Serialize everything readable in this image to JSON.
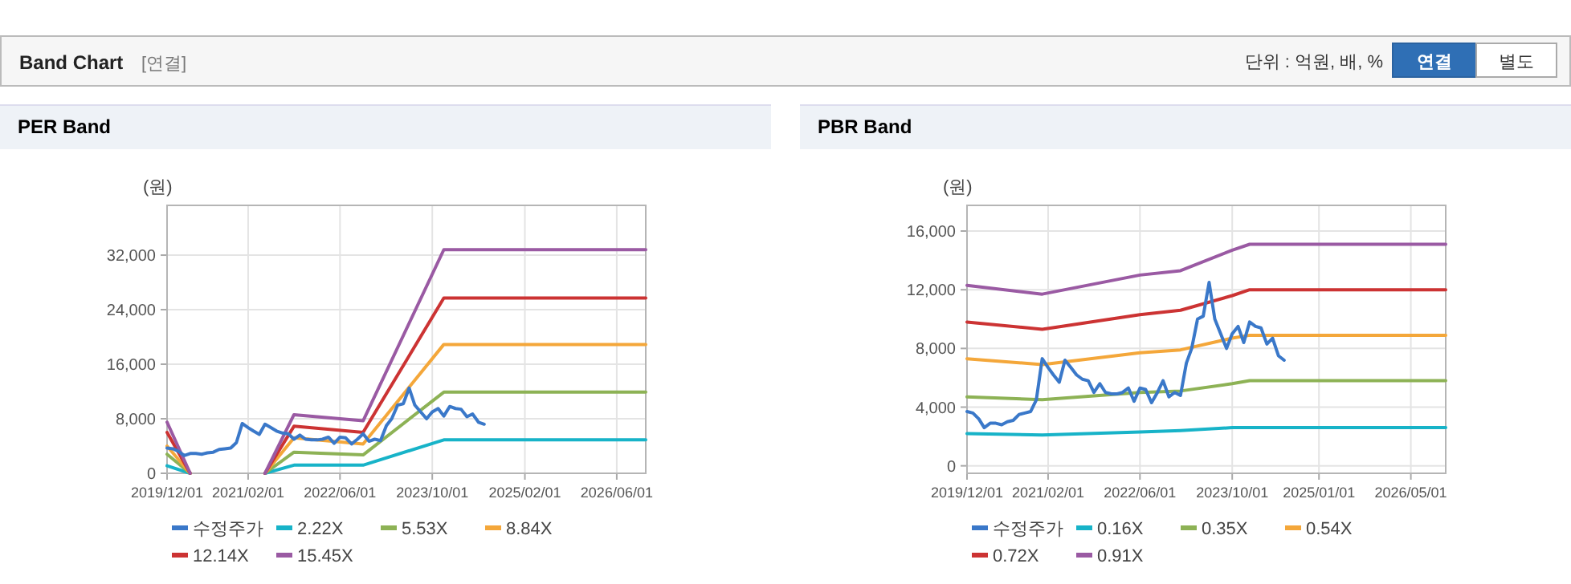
{
  "chart_data": [
    {
      "type": "other",
      "title": "Band Chart",
      "annotations": [
        "[연결]",
        "단위 : 억원, 배, %",
        "연결",
        "별도"
      ]
    },
    {
      "type": "line",
      "title": "PER Band",
      "ylabel": "(원)",
      "xlim": [
        "2019-12-01",
        "2026-11-01"
      ],
      "ylim": [
        0,
        39300
      ],
      "xticks": [
        {
          "value": "2019-12-01",
          "label": "2019/12/01"
        },
        {
          "value": "2021-02-01",
          "label": "2021/02/01"
        },
        {
          "value": "2022-06-01",
          "label": "2022/06/01"
        },
        {
          "value": "2023-10-01",
          "label": "2023/10/01"
        },
        {
          "value": "2025-02-01",
          "label": "2025/02/01"
        },
        {
          "value": "2026-06-01",
          "label": "2026/06/01"
        }
      ],
      "yticks": [
        0,
        {
          "value": 8000,
          "label": "8,000"
        },
        {
          "value": 16000,
          "label": "16,000"
        },
        {
          "value": 24000,
          "label": "24,000"
        },
        {
          "value": 32000,
          "label": "32,000"
        }
      ],
      "grid": true,
      "legend": "bottom",
      "marker": "none",
      "line_style": "solid",
      "series": [
        {
          "name": "수정주가",
          "color": "#3a78c9",
          "x": [
            "2019-12",
            "2020-01",
            "2020-02",
            "2020-03",
            "2020-04",
            "2020-05",
            "2020-06",
            "2020-07",
            "2020-08",
            "2020-09",
            "2020-10",
            "2020-11",
            "2020-12",
            "2021-01",
            "2021-02",
            "2021-03",
            "2021-04",
            "2021-05",
            "2021-06",
            "2021-07",
            "2021-08",
            "2021-09",
            "2021-10",
            "2021-11",
            "2021-12",
            "2022-01",
            "2022-02",
            "2022-03",
            "2022-04",
            "2022-05",
            "2022-06",
            "2022-07",
            "2022-08",
            "2022-09",
            "2022-10",
            "2022-11",
            "2022-12",
            "2023-01",
            "2023-02",
            "2023-03",
            "2023-04",
            "2023-05",
            "2023-06",
            "2023-07",
            "2023-08",
            "2023-09",
            "2023-10",
            "2023-11",
            "2023-12",
            "2024-01",
            "2024-02",
            "2024-03",
            "2024-04",
            "2024-05",
            "2024-06",
            "2024-07"
          ],
          "values": [
            3700,
            3600,
            3200,
            2600,
            2900,
            2900,
            2800,
            3000,
            3100,
            3500,
            3600,
            3700,
            4500,
            7300,
            6700,
            6200,
            5700,
            7200,
            6700,
            6200,
            5900,
            5800,
            5000,
            5600,
            5000,
            4900,
            4900,
            5000,
            5300,
            4400,
            5300,
            5200,
            4300,
            5000,
            5800,
            4700,
            5000,
            4800,
            7000,
            8000,
            10000,
            10200,
            12500,
            10000,
            9000,
            8000,
            9000,
            9500,
            8400,
            9800,
            9500,
            9400,
            8300,
            8700,
            7500,
            7200
          ]
        },
        {
          "name": "2.22X",
          "color": "#17b3c8",
          "x": [
            "2019-12",
            "2020-04",
            "2020-05",
            "2021-05",
            "2021-10",
            "2022-10",
            "2023-12",
            "2026-11"
          ],
          "values": [
            1100,
            0,
            null,
            0,
            1200,
            1200,
            4900,
            4900
          ]
        },
        {
          "name": "5.53X",
          "color": "#8db255",
          "x": [
            "2019-12",
            "2020-04",
            "2020-05",
            "2021-05",
            "2021-10",
            "2022-10",
            "2023-12",
            "2026-11"
          ],
          "values": [
            2800,
            0,
            null,
            0,
            3100,
            2700,
            11900,
            11900
          ]
        },
        {
          "name": "8.84X",
          "color": "#f4a73a",
          "x": [
            "2019-12",
            "2020-04",
            "2020-05",
            "2021-05",
            "2021-10",
            "2022-10",
            "2023-12",
            "2026-11"
          ],
          "values": [
            4000,
            0,
            null,
            0,
            5200,
            4300,
            18900,
            18900
          ]
        },
        {
          "name": "12.14X",
          "color": "#cc3333",
          "x": [
            "2019-12",
            "2020-04",
            "2020-05",
            "2021-05",
            "2021-10",
            "2022-10",
            "2023-12",
            "2026-11"
          ],
          "values": [
            6000,
            0,
            null,
            0,
            6900,
            6000,
            25700,
            25700
          ]
        },
        {
          "name": "15.45X",
          "color": "#9a5aa3",
          "x": [
            "2019-12",
            "2020-04",
            "2020-05",
            "2021-05",
            "2021-10",
            "2022-10",
            "2023-12",
            "2026-11"
          ],
          "values": [
            7500,
            0,
            null,
            0,
            8600,
            7700,
            32800,
            32800
          ]
        }
      ]
    },
    {
      "type": "line",
      "title": "PBR Band",
      "ylabel": "(원)",
      "xlim": [
        "2019-12-01",
        "2026-11-01"
      ],
      "ylim": [
        -510,
        17750
      ],
      "xticks": [
        {
          "value": "2019-12-01",
          "label": "2019/12/01"
        },
        {
          "value": "2021-02-01",
          "label": "2021/02/01"
        },
        {
          "value": "2022-06-01",
          "label": "2022/06/01"
        },
        {
          "value": "2023-10-01",
          "label": "2023/10/01"
        },
        {
          "value": "2025-01-01",
          "label": "2025/01/01"
        },
        {
          "value": "2026-05-01",
          "label": "2026/05/01"
        }
      ],
      "yticks": [
        0,
        {
          "value": 4000,
          "label": "4,000"
        },
        {
          "value": 8000,
          "label": "8,000"
        },
        {
          "value": 12000,
          "label": "12,000"
        },
        {
          "value": 16000,
          "label": "16,000"
        }
      ],
      "grid": true,
      "legend": "bottom",
      "marker": "none",
      "line_style": "solid",
      "series": [
        {
          "name": "수정주가",
          "color": "#3a78c9",
          "x": [
            "2019-12",
            "2020-01",
            "2020-02",
            "2020-03",
            "2020-04",
            "2020-05",
            "2020-06",
            "2020-07",
            "2020-08",
            "2020-09",
            "2020-10",
            "2020-11",
            "2020-12",
            "2021-01",
            "2021-02",
            "2021-03",
            "2021-04",
            "2021-05",
            "2021-06",
            "2021-07",
            "2021-08",
            "2021-09",
            "2021-10",
            "2021-11",
            "2021-12",
            "2022-01",
            "2022-02",
            "2022-03",
            "2022-04",
            "2022-05",
            "2022-06",
            "2022-07",
            "2022-08",
            "2022-09",
            "2022-10",
            "2022-11",
            "2022-12",
            "2023-01",
            "2023-02",
            "2023-03",
            "2023-04",
            "2023-05",
            "2023-06",
            "2023-07",
            "2023-08",
            "2023-09",
            "2023-10",
            "2023-11",
            "2023-12",
            "2024-01",
            "2024-02",
            "2024-03",
            "2024-04",
            "2024-05",
            "2024-06",
            "2024-07"
          ],
          "values": [
            3700,
            3600,
            3200,
            2600,
            2900,
            2900,
            2800,
            3000,
            3100,
            3500,
            3600,
            3700,
            4500,
            7300,
            6700,
            6200,
            5700,
            7200,
            6700,
            6200,
            5900,
            5800,
            5000,
            5600,
            5000,
            4900,
            4900,
            5000,
            5300,
            4400,
            5300,
            5200,
            4300,
            5000,
            5800,
            4700,
            5000,
            4800,
            7000,
            8000,
            10000,
            10200,
            12500,
            10000,
            9000,
            8000,
            9000,
            9500,
            8400,
            9800,
            9500,
            9400,
            8300,
            8700,
            7500,
            7200
          ]
        },
        {
          "name": "0.16X",
          "color": "#17b3c8",
          "x": [
            "2019-12",
            "2021-01",
            "2022-06",
            "2023-01",
            "2023-10",
            "2024-01",
            "2026-11"
          ],
          "values": [
            2200,
            2100,
            2300,
            2400,
            2600,
            2600,
            2600
          ]
        },
        {
          "name": "0.35X",
          "color": "#8db255",
          "x": [
            "2019-12",
            "2021-01",
            "2022-06",
            "2023-01",
            "2023-10",
            "2024-01",
            "2026-11"
          ],
          "values": [
            4700,
            4500,
            5000,
            5100,
            5600,
            5800,
            5800
          ]
        },
        {
          "name": "0.54X",
          "color": "#f4a73a",
          "x": [
            "2019-12",
            "2021-01",
            "2022-06",
            "2023-01",
            "2023-10",
            "2024-01",
            "2026-11"
          ],
          "values": [
            7300,
            6900,
            7700,
            7900,
            8700,
            8900,
            8900
          ]
        },
        {
          "name": "0.72X",
          "color": "#cc3333",
          "x": [
            "2019-12",
            "2021-01",
            "2022-06",
            "2023-01",
            "2023-10",
            "2024-01",
            "2026-11"
          ],
          "values": [
            9800,
            9300,
            10300,
            10600,
            11600,
            12000,
            12000
          ]
        },
        {
          "name": "0.91X",
          "color": "#9a5aa3",
          "x": [
            "2019-12",
            "2021-01",
            "2022-06",
            "2023-01",
            "2023-10",
            "2024-01",
            "2026-11"
          ],
          "values": [
            12300,
            11700,
            13000,
            13300,
            14700,
            15100,
            15100
          ]
        }
      ]
    }
  ]
}
